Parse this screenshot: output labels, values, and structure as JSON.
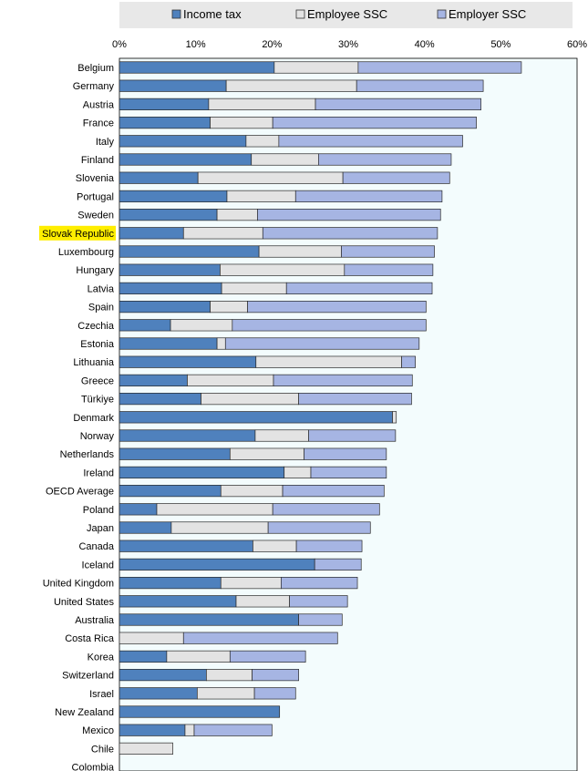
{
  "colors": {
    "income_tax": "#4f81bd",
    "employee_ssc": "#e3e3e3",
    "employer_ssc": "#a6b5e3",
    "plot_background": "#f3fcfd",
    "legend_background": "#e8e8e8",
    "highlight": "#ffee00"
  },
  "chart_data": {
    "type": "bar",
    "orientation": "horizontal",
    "stacked": true,
    "xlim": [
      0,
      60
    ],
    "x_ticks": [
      "0%",
      "10%",
      "20%",
      "30%",
      "40%",
      "50%",
      "60%"
    ],
    "legend_position": "top",
    "highlighted_category": "Slovak Republic",
    "categories": [
      "Belgium",
      "Germany",
      "Austria",
      "France",
      "Italy",
      "Finland",
      "Slovenia",
      "Portugal",
      "Sweden",
      "Slovak Republic",
      "Luxembourg",
      "Hungary",
      "Latvia",
      "Spain",
      "Czechia",
      "Estonia",
      "Lithuania",
      "Greece",
      "Türkiye",
      "Denmark",
      "Norway",
      "Netherlands",
      "Ireland",
      "OECD Average",
      "Poland",
      "Japan",
      "Canada",
      "Iceland",
      "United Kingdom",
      "United States",
      "Australia",
      "Costa Rica",
      "Korea",
      "Switzerland",
      "Israel",
      "New Zealand",
      "Mexico",
      "Chile",
      "Colombia"
    ],
    "series": [
      {
        "name": "Income tax",
        "values": [
          20.3,
          14.0,
          11.7,
          11.9,
          16.6,
          17.3,
          10.3,
          14.1,
          12.8,
          8.4,
          18.3,
          13.2,
          13.4,
          11.9,
          6.7,
          12.8,
          17.9,
          8.9,
          10.7,
          35.8,
          17.8,
          14.5,
          21.6,
          13.3,
          4.9,
          6.8,
          17.5,
          25.6,
          13.3,
          15.3,
          23.5,
          0,
          6.2,
          11.4,
          10.2,
          21.0,
          8.6,
          0,
          0
        ]
      },
      {
        "name": "Employee SSC",
        "values": [
          11.0,
          17.1,
          14.0,
          8.2,
          4.3,
          8.8,
          19.0,
          9.0,
          5.3,
          10.4,
          10.8,
          16.3,
          8.5,
          4.9,
          8.1,
          1.1,
          19.1,
          11.3,
          12.8,
          0.5,
          7.0,
          9.7,
          3.5,
          8.1,
          15.2,
          12.7,
          5.7,
          0,
          7.9,
          7.0,
          0,
          8.4,
          8.3,
          6.0,
          7.5,
          0,
          1.2,
          7.0,
          0
        ]
      },
      {
        "name": "Employer SSC",
        "values": [
          21.4,
          16.6,
          21.7,
          26.7,
          24.1,
          17.4,
          14.0,
          19.2,
          24.0,
          22.9,
          12.2,
          11.6,
          19.1,
          23.4,
          25.4,
          25.4,
          1.8,
          18.2,
          14.8,
          0,
          11.4,
          10.8,
          9.9,
          13.3,
          14.0,
          13.4,
          8.6,
          6.1,
          10.0,
          7.6,
          5.7,
          20.2,
          9.9,
          6.1,
          5.4,
          0,
          10.2,
          0,
          0
        ]
      }
    ]
  }
}
